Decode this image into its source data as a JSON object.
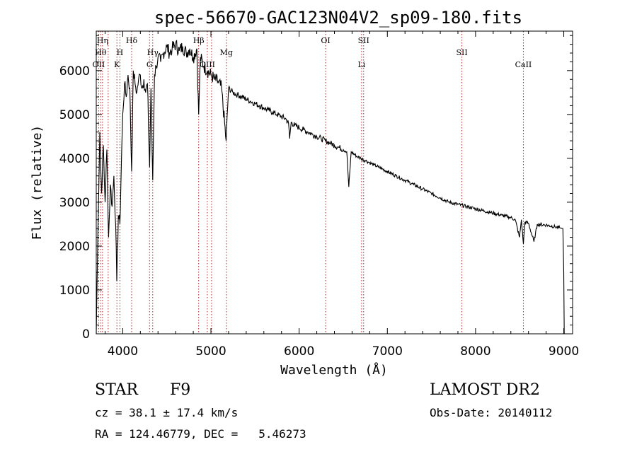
{
  "chart_data": {
    "type": "line",
    "title": "spec-56670-GAC123N04V2_sp09-180.fits",
    "xlabel": "Wavelength (Å)",
    "ylabel": "Flux (relative)",
    "xlim": [
      3700,
      9100
    ],
    "ylim": [
      0,
      6900
    ],
    "x_ticks": [
      4000,
      5000,
      6000,
      7000,
      8000,
      9000
    ],
    "x_tick_labels": [
      "4000",
      "5000",
      "6000",
      "7000",
      "8000",
      "9000"
    ],
    "y_ticks": [
      0,
      1000,
      2000,
      3000,
      4000,
      5000,
      6000
    ],
    "y_tick_labels": [
      "0",
      "1000",
      "2000",
      "3000",
      "4000",
      "5000",
      "6000"
    ],
    "spectrum": {
      "x": [
        3700,
        3720,
        3740,
        3760,
        3780,
        3800,
        3820,
        3840,
        3860,
        3880,
        3900,
        3920,
        3933,
        3950,
        3968,
        3985,
        4000,
        4020,
        4040,
        4060,
        4080,
        4101,
        4120,
        4140,
        4160,
        4180,
        4200,
        4220,
        4240,
        4260,
        4280,
        4305,
        4320,
        4340,
        4360,
        4380,
        4400,
        4430,
        4460,
        4500,
        4530,
        4560,
        4600,
        4640,
        4680,
        4720,
        4760,
        4800,
        4840,
        4861,
        4880,
        4920,
        4960,
        5000,
        5040,
        5080,
        5120,
        5172,
        5200,
        5250,
        5300,
        5350,
        5400,
        5450,
        5500,
        5550,
        5600,
        5650,
        5700,
        5750,
        5800,
        5850,
        5880,
        5892,
        5910,
        5950,
        6000,
        6050,
        6100,
        6150,
        6200,
        6250,
        6300,
        6350,
        6400,
        6450,
        6500,
        6540,
        6563,
        6590,
        6650,
        6700,
        6750,
        6800,
        6850,
        6900,
        7000,
        7100,
        7200,
        7300,
        7400,
        7500,
        7600,
        7700,
        7800,
        7900,
        8000,
        8100,
        8200,
        8300,
        8400,
        8450,
        8498,
        8520,
        8542,
        8560,
        8600,
        8662,
        8700,
        8800,
        8900,
        8990,
        9000,
        9005
      ],
      "y": [
        0,
        2500,
        4600,
        3200,
        4300,
        3000,
        4200,
        2200,
        3400,
        2900,
        3600,
        2500,
        1200,
        2700,
        2500,
        3900,
        5000,
        5700,
        5400,
        5900,
        5600,
        3700,
        6000,
        5700,
        5500,
        5800,
        5900,
        5600,
        5800,
        5500,
        5700,
        3800,
        5600,
        3500,
        5900,
        6100,
        6300,
        6200,
        6400,
        6550,
        6400,
        6500,
        6600,
        6450,
        6550,
        6400,
        6500,
        6300,
        6500,
        5000,
        6300,
        6100,
        6000,
        5900,
        5800,
        5750,
        5600,
        4400,
        5600,
        5500,
        5450,
        5400,
        5350,
        5300,
        5250,
        5200,
        5150,
        5100,
        5050,
        5000,
        4950,
        4900,
        4800,
        4450,
        4820,
        4750,
        4700,
        4650,
        4600,
        4550,
        4500,
        4450,
        4400,
        4350,
        4300,
        4250,
        4200,
        4150,
        3350,
        4150,
        4050,
        4000,
        3950,
        3900,
        3850,
        3800,
        3700,
        3600,
        3500,
        3400,
        3300,
        3200,
        3100,
        3000,
        2950,
        2900,
        2850,
        2800,
        2750,
        2700,
        2650,
        2600,
        2200,
        2600,
        2050,
        2550,
        2520,
        2100,
        2500,
        2480,
        2440,
        2400,
        1400,
        0
      ]
    },
    "lines": [
      {
        "wavelength": 3727,
        "labels": [
          "OII"
        ],
        "row": 3
      },
      {
        "wavelength": 3750,
        "labels": [
          "Hθ"
        ],
        "row": 2
      },
      {
        "wavelength": 3771,
        "labels": [
          "Hη"
        ],
        "row": 1
      },
      {
        "wavelength": 3835,
        "labels": [],
        "row": 1
      },
      {
        "wavelength": 3934,
        "labels": [
          "K"
        ],
        "row": 3
      },
      {
        "wavelength": 3968,
        "labels": [
          "H"
        ],
        "row": 2
      },
      {
        "wavelength": 4101,
        "labels": [
          "Hδ"
        ],
        "row": 1
      },
      {
        "wavelength": 4304,
        "labels": [
          "G"
        ],
        "row": 3
      },
      {
        "wavelength": 4340,
        "labels": [
          "Hγ"
        ],
        "row": 2
      },
      {
        "wavelength": 4861,
        "labels": [
          "Hβ"
        ],
        "row": 1
      },
      {
        "wavelength": 4959,
        "labels": [
          "OIII"
        ],
        "row": 3
      },
      {
        "wavelength": 5007,
        "labels": [],
        "row": 3
      },
      {
        "wavelength": 5175,
        "labels": [
          "Mg"
        ],
        "row": 2
      },
      {
        "wavelength": 6300,
        "labels": [
          "OI"
        ],
        "row": 1
      },
      {
        "wavelength": 6708,
        "labels": [
          "Li"
        ],
        "row": 3
      },
      {
        "wavelength": 6731,
        "labels": [
          "SII"
        ],
        "row": 1
      },
      {
        "wavelength": 7845,
        "labels": [
          "SII"
        ],
        "row": 2
      },
      {
        "wavelength": 8542,
        "labels": [
          "CaII"
        ],
        "row": 3
      }
    ],
    "line_color": "#000000",
    "marker_color": "#b22222"
  },
  "info": {
    "object_class": "STAR",
    "subclass": "F9",
    "survey": "LAMOST DR2",
    "redshift_text": "cz = 38.1 ± 17.4 km/s",
    "obs_date_text": "Obs-Date: 20140112",
    "coords_text": "RA = 124.46779, DEC =   5.46273"
  }
}
